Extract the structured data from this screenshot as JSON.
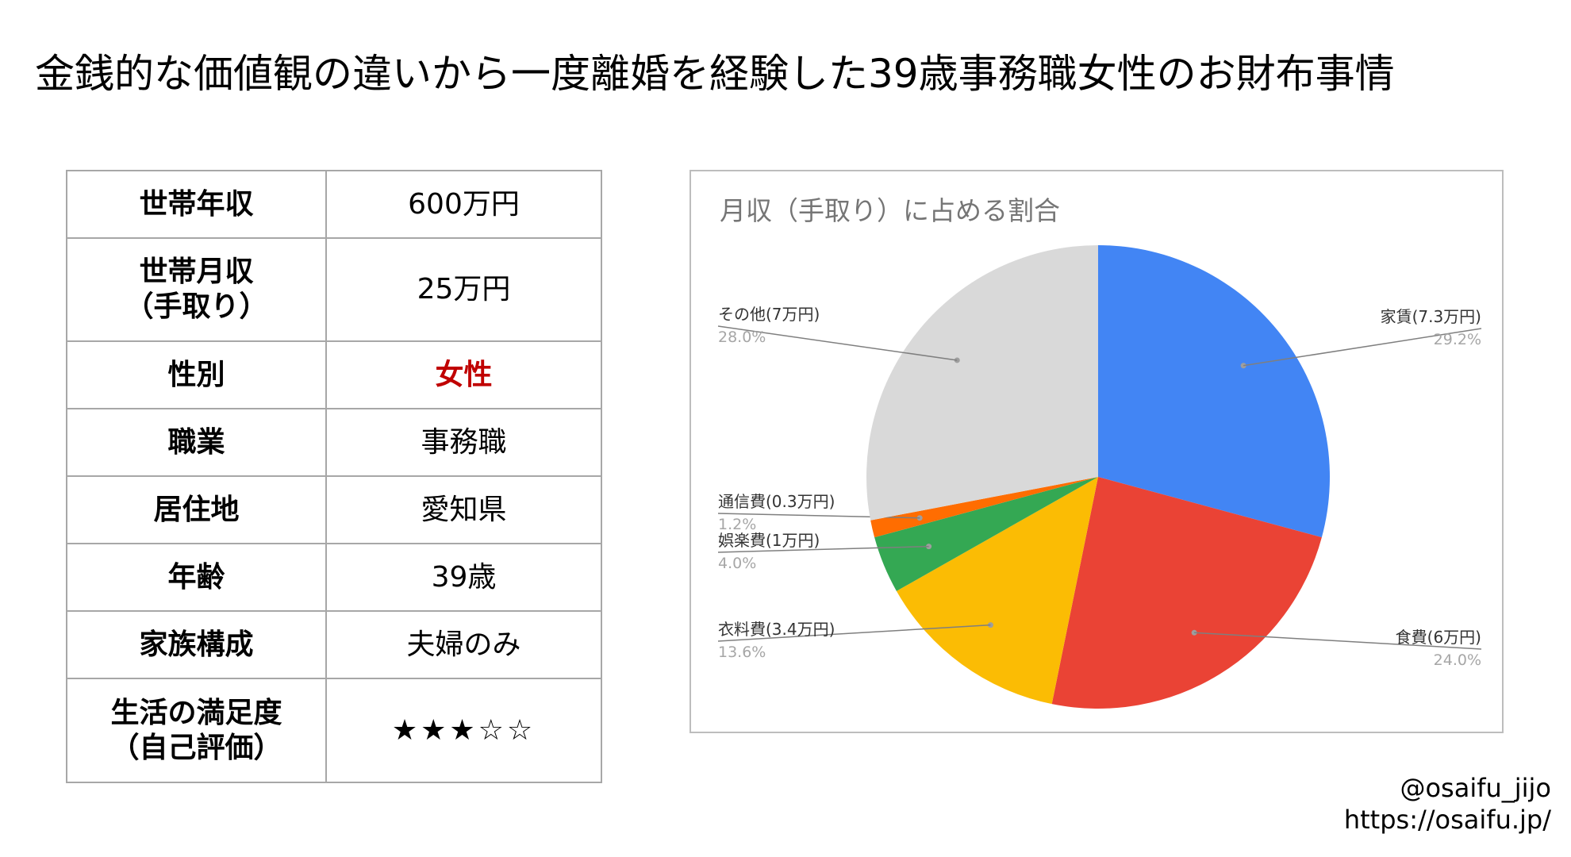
{
  "title": "金銭的な価値観の違いから一度離婚を経験した39歳事務職女性のお財布事情",
  "profile": [
    {
      "label": "世帯年収",
      "value": "600万円"
    },
    {
      "label": "世帯月収\n（手取り）",
      "value": "25万円"
    },
    {
      "label": "性別",
      "value": "女性",
      "value_color": "#c00000"
    },
    {
      "label": "職業",
      "value": "事務職"
    },
    {
      "label": "居住地",
      "value": "愛知県"
    },
    {
      "label": "年齢",
      "value": "39歳"
    },
    {
      "label": "家族構成",
      "value": "夫婦のみ"
    },
    {
      "label": "生活の満足度\n（自己評価）",
      "value": "★★★☆☆",
      "rating": 3,
      "rating_max": 5
    }
  ],
  "chart_data": {
    "type": "pie",
    "title": "月収（手取り）に占める割合",
    "slices": [
      {
        "label": "家賃(7.3万円)",
        "value": 7.3,
        "percent": "29.2%",
        "color": "#4285f4"
      },
      {
        "label": "食費(6万円)",
        "value": 6,
        "percent": "24.0%",
        "color": "#ea4335"
      },
      {
        "label": "衣料費(3.4万円)",
        "value": 3.4,
        "percent": "13.6%",
        "color": "#fbbc04"
      },
      {
        "label": "娯楽費(1万円)",
        "value": 1,
        "percent": "4.0%",
        "color": "#34a853"
      },
      {
        "label": "通信費(0.3万円)",
        "value": 0.3,
        "percent": "1.2%",
        "color": "#ff6d01"
      },
      {
        "label": "その他(7万円)",
        "value": 7,
        "percent": "28.0%",
        "color": "#d9d9d9"
      }
    ],
    "start_angle": "12 o'clock",
    "direction": "clockwise",
    "label_style": "leader-lines"
  },
  "credit": {
    "handle": "@osaifu_jijo",
    "url": "https://osaifu.jp/"
  }
}
